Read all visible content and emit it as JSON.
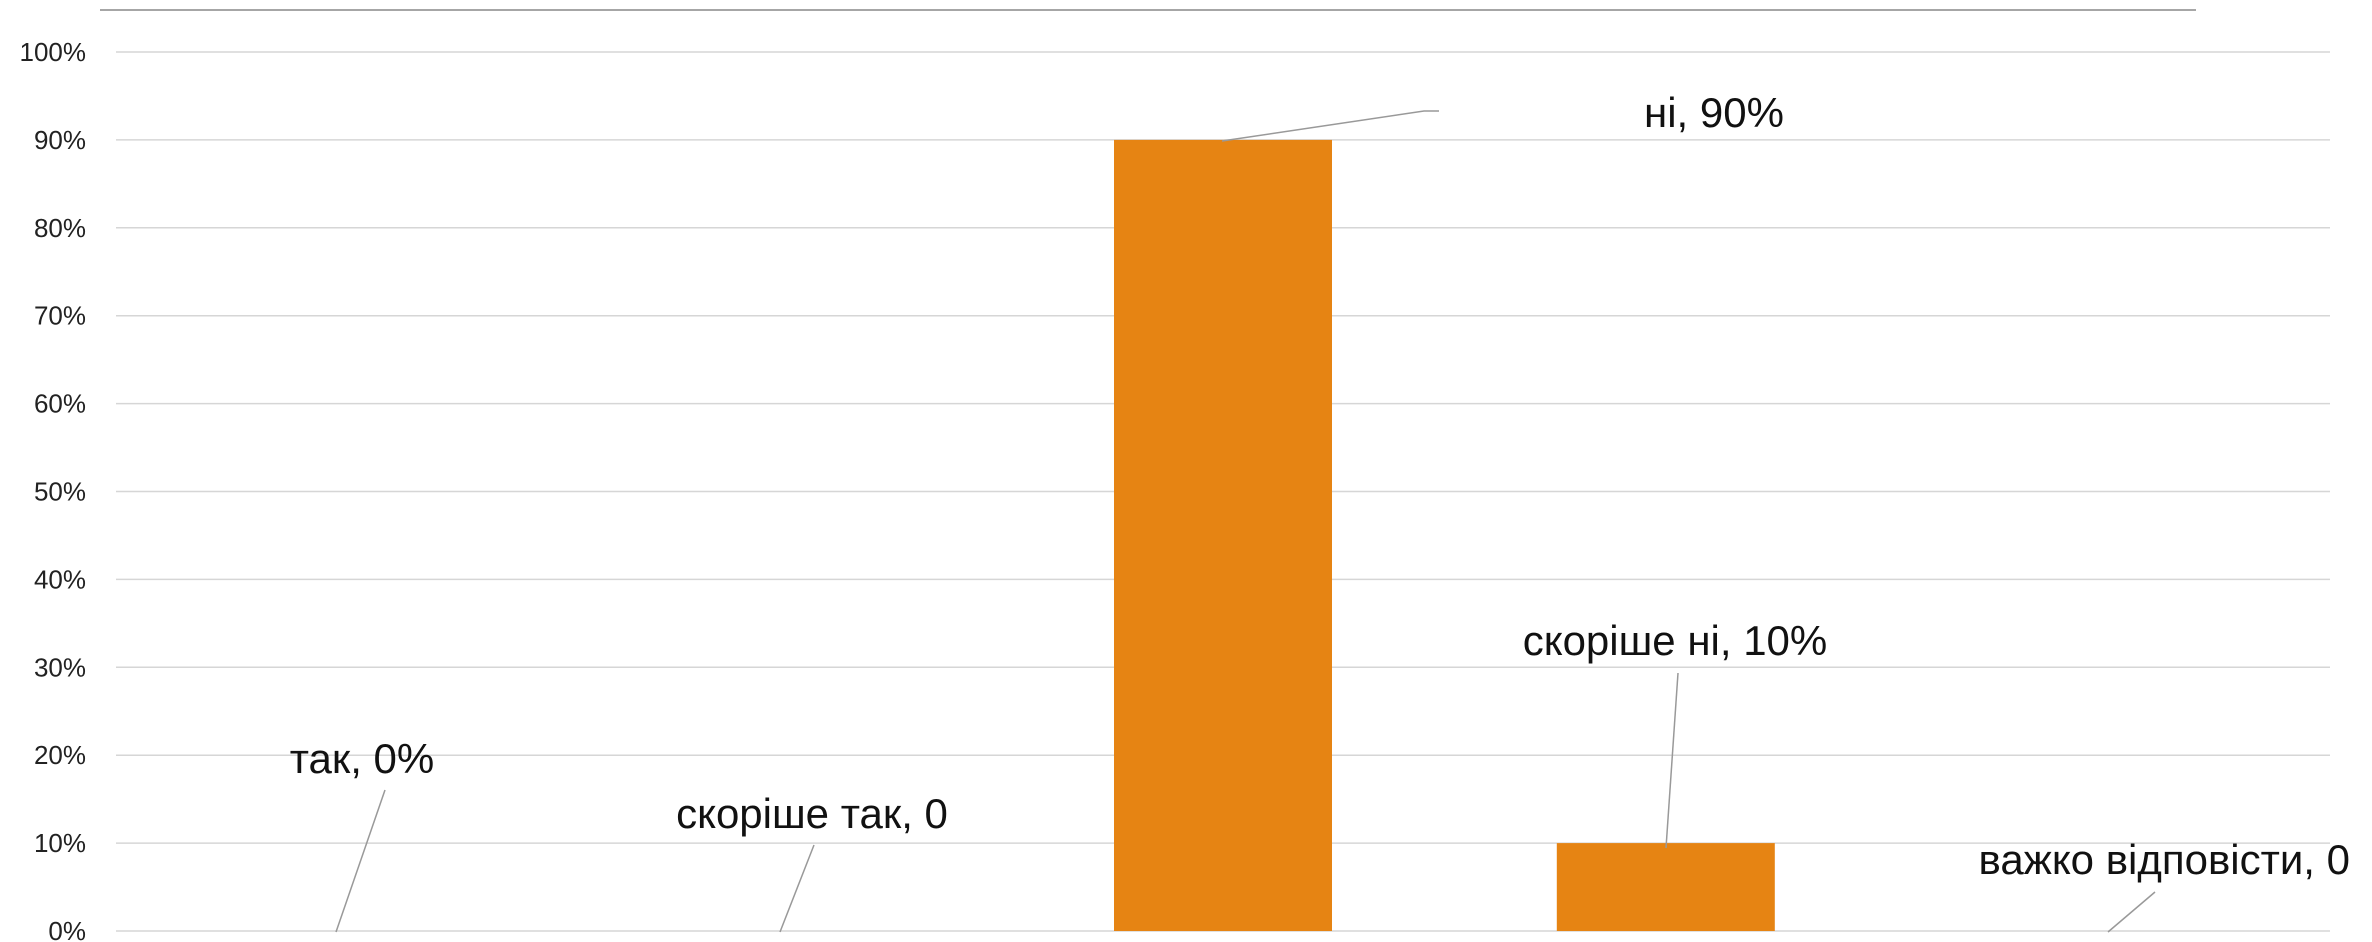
{
  "chart_data": {
    "type": "bar",
    "categories": [
      "так",
      "скоріше так",
      "ні",
      "скоріше ні",
      "важко відповісти"
    ],
    "values": [
      0,
      0,
      90,
      10,
      0
    ],
    "data_labels": [
      "так, 0%",
      "скоріше так, 0",
      "ні, 90%",
      "скоріше ні, 10%",
      "важко відповісти, 0"
    ],
    "y_ticks": [
      "0%",
      "10%",
      "20%",
      "30%",
      "40%",
      "50%",
      "60%",
      "70%",
      "80%",
      "90%",
      "100%"
    ],
    "ylim": [
      0,
      100
    ],
    "grid": true,
    "bar_color": "#E68413",
    "title": "",
    "xlabel": "",
    "ylabel": ""
  }
}
